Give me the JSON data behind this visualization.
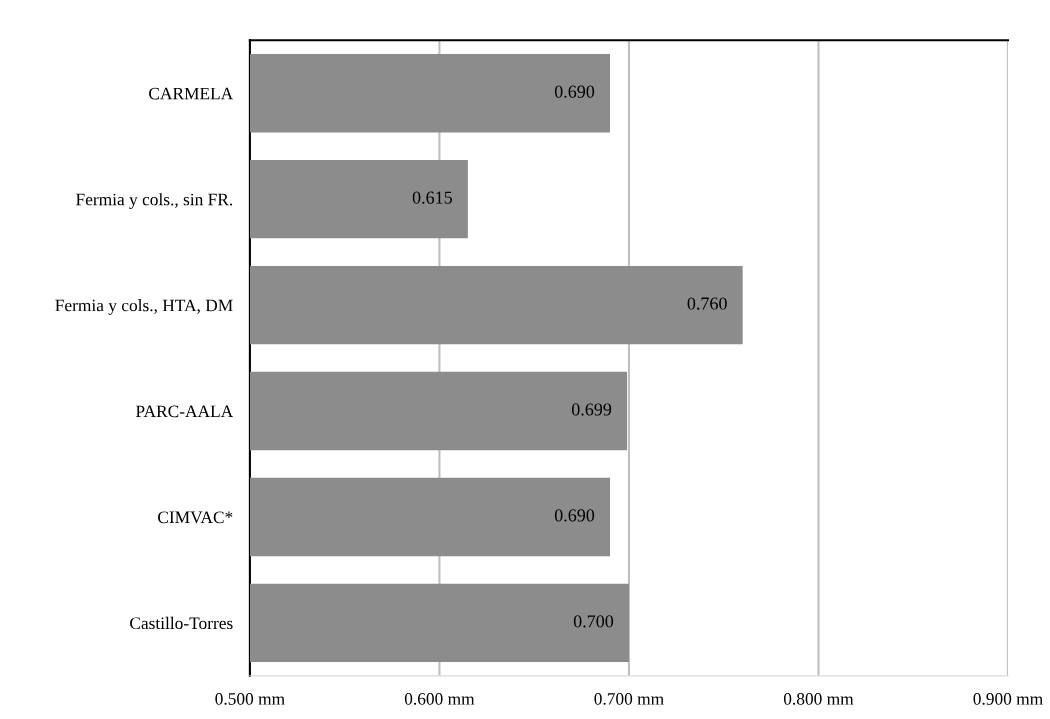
{
  "chart_data": {
    "type": "bar",
    "orientation": "horizontal",
    "categories": [
      "CARMELA",
      "Fermia y cols., sin FR.",
      "Fermia y cols., HTA, DM",
      "PARC-AALA",
      "CIMVAC*",
      "Castillo-Torres"
    ],
    "values": [
      0.69,
      0.615,
      0.76,
      0.699,
      0.69,
      0.7
    ],
    "value_labels": [
      "0.690",
      "0.615",
      "0.760",
      "0.699",
      "0.690",
      "0.700"
    ],
    "color": "#8c8c8c",
    "xlim": [
      0.5,
      0.9
    ],
    "xticks": [
      {
        "value": 0.5,
        "label": "0.500 mm"
      },
      {
        "value": 0.6,
        "label": "0.600 mm"
      },
      {
        "value": 0.7,
        "label": "0.700 mm"
      },
      {
        "value": 0.8,
        "label": "0.800 mm"
      },
      {
        "value": 0.9,
        "label": "0.900 mm"
      }
    ],
    "grid": "x",
    "legend": false
  }
}
